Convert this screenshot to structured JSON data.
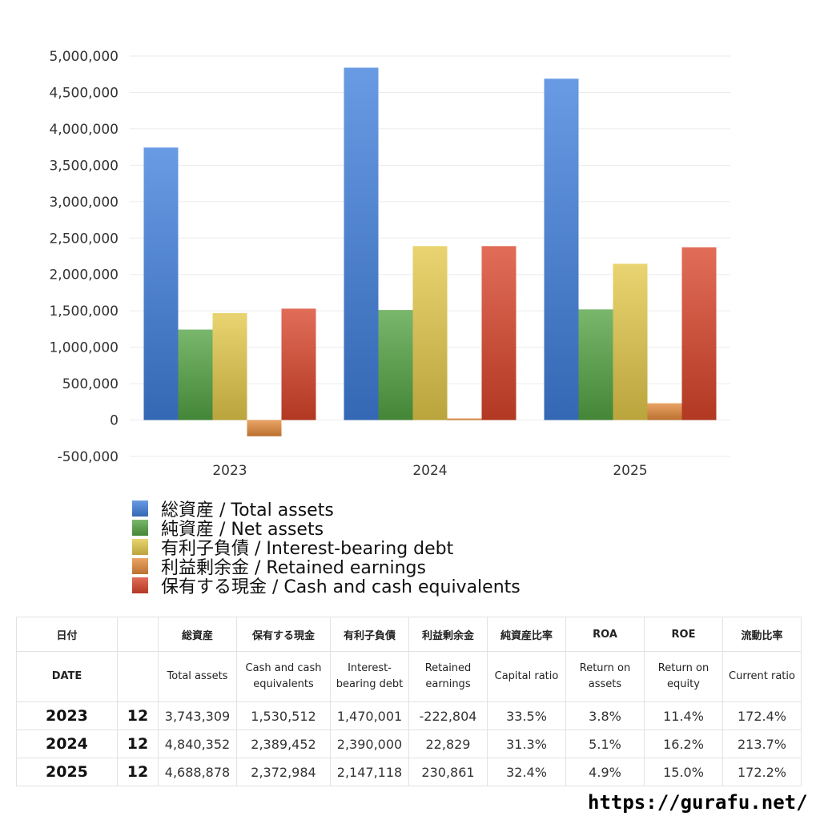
{
  "chart_data": {
    "type": "bar",
    "categories": [
      "2023",
      "2024",
      "2025"
    ],
    "series": [
      {
        "name": "総資産 / Total assets",
        "color": "#3f7fdc",
        "values": [
          3743309,
          4840352,
          4688878
        ]
      },
      {
        "name": "純資産 / Net assets",
        "color": "#53a343",
        "values": [
          1243000,
          1512000,
          1520000
        ]
      },
      {
        "name": "有利子負債 / Interest-bearing debt",
        "color": "#e3c849",
        "values": [
          1470001,
          2390000,
          2147118
        ]
      },
      {
        "name": "利益剰余金 / Retained earnings",
        "color": "#e48a3a",
        "values": [
          -222804,
          22829,
          230861
        ]
      },
      {
        "name": "保有する現金 /  Cash and cash equivalents",
        "color": "#d9442a",
        "values": [
          1530512,
          2389452,
          2372984
        ]
      }
    ],
    "ylim": [
      -500000,
      5000000
    ],
    "yticks": [
      "5,000,000",
      "4,500,000",
      "4,000,000",
      "3,500,000",
      "3,000,000",
      "2,500,000",
      "2,000,000",
      "1,500,000",
      "1,000,000",
      "500,000",
      "0",
      "-500,000"
    ],
    "grid": true,
    "legend_position": "bottom"
  },
  "table": {
    "headers_jp": [
      "日付",
      "",
      "総資産",
      "保有する現金",
      "有利子負債",
      "利益剰余金",
      "純資産比率",
      "ROA",
      "ROE",
      "流動比率"
    ],
    "headers_en": [
      "DATE",
      "",
      "Total assets",
      "Cash and cash equivalents",
      "Interest-bearing debt",
      "Retained earnings",
      "Capital ratio",
      "Return on assets",
      "Return on equity",
      "Current ratio"
    ],
    "rows": [
      {
        "year": "2023",
        "month": "12",
        "total_assets": "3,743,309",
        "cash": "1,530,512",
        "debt": "1,470,001",
        "retained": "-222,804",
        "capital_ratio": "33.5%",
        "roa": "3.8%",
        "roe": "11.4%",
        "current_ratio": "172.4%"
      },
      {
        "year": "2024",
        "month": "12",
        "total_assets": "4,840,352",
        "cash": "2,389,452",
        "debt": "2,390,000",
        "retained": "22,829",
        "capital_ratio": "31.3%",
        "roa": "5.1%",
        "roe": "16.2%",
        "current_ratio": "213.7%"
      },
      {
        "year": "2025",
        "month": "12",
        "total_assets": "4,688,878",
        "cash": "2,372,984",
        "debt": "2,147,118",
        "retained": "230,861",
        "capital_ratio": "32.4%",
        "roa": "4.9%",
        "roe": "15.0%",
        "current_ratio": "172.2%"
      }
    ]
  },
  "footer": {
    "url": "https://gurafu.net/"
  }
}
